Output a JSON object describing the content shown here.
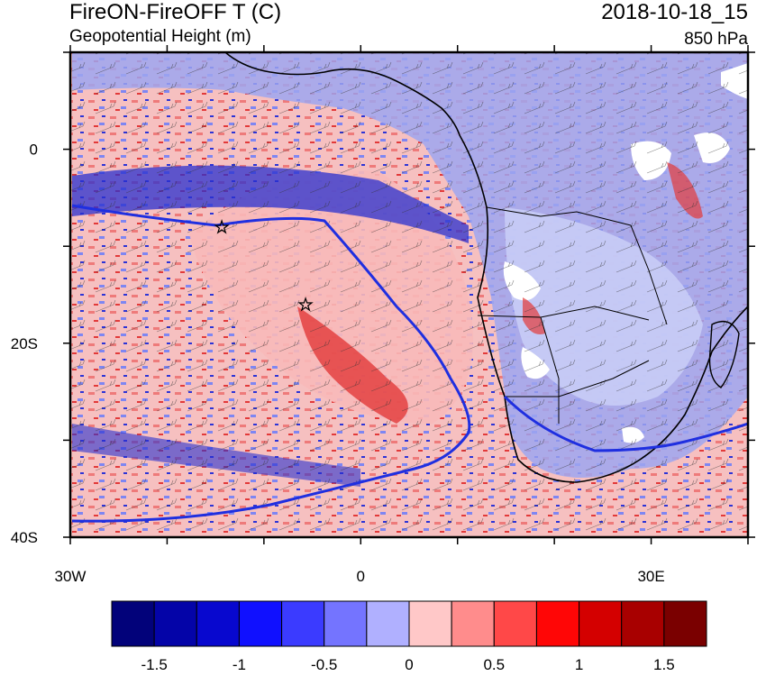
{
  "header": {
    "title_left": "FireON-FireOFF T (C)",
    "subtitle_left": "Geopotential Height (m)",
    "title_right": "2018-10-18_15",
    "subtitle_right": "850 hPa"
  },
  "map": {
    "lon_ticks": [
      {
        "value": -30,
        "label": "30W"
      },
      {
        "value": 0,
        "label": "0"
      },
      {
        "value": 30,
        "label": "30E"
      }
    ],
    "lat_ticks": [
      {
        "value": 0,
        "label": "0"
      },
      {
        "value": -20,
        "label": "20S"
      },
      {
        "value": -40,
        "label": "40S"
      }
    ],
    "colors": {
      "ocean_field": "#f6c7c7",
      "coast": "#000000",
      "geopotential_contour": "#1f2fe0",
      "stars": "#000000"
    }
  },
  "colorbar": {
    "colors": [
      "#02027a",
      "#0404a8",
      "#0808cf",
      "#1010ff",
      "#3b3bff",
      "#7474ff",
      "#b0b0ff",
      "#ffc8c8",
      "#ff8c8c",
      "#ff4848",
      "#ff0606",
      "#d40000",
      "#a80000",
      "#7a0000"
    ],
    "labels": [
      "-1.5",
      "-1",
      "-0.5",
      "0",
      "0.5",
      "1",
      "1.5"
    ]
  }
}
